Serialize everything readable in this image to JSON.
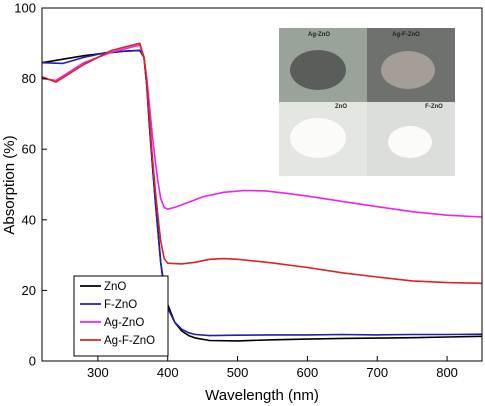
{
  "chart_data": {
    "type": "line",
    "title": "",
    "xlabel": "Wavelength (nm)",
    "ylabel": "Absorption (%)",
    "xlim": [
      220,
      850
    ],
    "ylim": [
      0,
      100
    ],
    "x_ticks": [
      300,
      400,
      500,
      600,
      700,
      800
    ],
    "y_ticks": [
      0,
      20,
      40,
      60,
      80,
      100
    ],
    "grid": false,
    "legend_position": "bottom-left",
    "series": [
      {
        "name": "ZnO",
        "color": "#000000",
        "points": [
          [
            220,
            84.5
          ],
          [
            250,
            85.5
          ],
          [
            280,
            86.5
          ],
          [
            310,
            87.2
          ],
          [
            340,
            87.8
          ],
          [
            360,
            88
          ],
          [
            366,
            86
          ],
          [
            370,
            78
          ],
          [
            374,
            66
          ],
          [
            378,
            56
          ],
          [
            382,
            46
          ],
          [
            386,
            37
          ],
          [
            390,
            28
          ],
          [
            395,
            21
          ],
          [
            400,
            16
          ],
          [
            410,
            11
          ],
          [
            420,
            8.5
          ],
          [
            430,
            7.2
          ],
          [
            440,
            6.5
          ],
          [
            460,
            5.8
          ],
          [
            500,
            5.7
          ],
          [
            550,
            6
          ],
          [
            600,
            6.2
          ],
          [
            650,
            6.4
          ],
          [
            700,
            6.5
          ],
          [
            750,
            6.6
          ],
          [
            800,
            6.8
          ],
          [
            850,
            7
          ]
        ]
      },
      {
        "name": "F-ZnO",
        "color": "#1f1fb4",
        "points": [
          [
            220,
            84.5
          ],
          [
            250,
            84.3
          ],
          [
            280,
            86
          ],
          [
            310,
            87.3
          ],
          [
            340,
            87.8
          ],
          [
            360,
            88
          ],
          [
            366,
            86
          ],
          [
            370,
            78
          ],
          [
            374,
            66
          ],
          [
            378,
            56
          ],
          [
            382,
            46
          ],
          [
            386,
            37
          ],
          [
            390,
            28
          ],
          [
            395,
            20
          ],
          [
            400,
            15
          ],
          [
            410,
            11
          ],
          [
            420,
            9
          ],
          [
            430,
            8
          ],
          [
            440,
            7.5
          ],
          [
            460,
            7.2
          ],
          [
            500,
            7.3
          ],
          [
            550,
            7.4
          ],
          [
            600,
            7.4
          ],
          [
            650,
            7.5
          ],
          [
            700,
            7.4
          ],
          [
            750,
            7.5
          ],
          [
            800,
            7.5
          ],
          [
            850,
            7.6
          ]
        ]
      },
      {
        "name": "Ag-ZnO",
        "color": "#ee22ee",
        "points": [
          [
            220,
            80
          ],
          [
            240,
            79.5
          ],
          [
            260,
            82
          ],
          [
            280,
            84.5
          ],
          [
            300,
            86
          ],
          [
            320,
            87.5
          ],
          [
            340,
            88.5
          ],
          [
            360,
            89.5
          ],
          [
            366,
            86
          ],
          [
            370,
            80
          ],
          [
            374,
            72
          ],
          [
            378,
            64
          ],
          [
            382,
            57
          ],
          [
            386,
            51
          ],
          [
            390,
            46
          ],
          [
            395,
            43.5
          ],
          [
            400,
            43
          ],
          [
            410,
            43.5
          ],
          [
            430,
            45
          ],
          [
            450,
            46.5
          ],
          [
            480,
            47.8
          ],
          [
            510,
            48.3
          ],
          [
            540,
            48.2
          ],
          [
            570,
            47.5
          ],
          [
            600,
            46.7
          ],
          [
            650,
            45.2
          ],
          [
            700,
            43.7
          ],
          [
            750,
            42.3
          ],
          [
            800,
            41.3
          ],
          [
            850,
            40.8
          ]
        ]
      },
      {
        "name": "Ag-F-ZnO",
        "color": "#dd2222",
        "points": [
          [
            220,
            80.5
          ],
          [
            240,
            79
          ],
          [
            260,
            81.5
          ],
          [
            280,
            84
          ],
          [
            300,
            86
          ],
          [
            320,
            88
          ],
          [
            340,
            89
          ],
          [
            360,
            90
          ],
          [
            366,
            86
          ],
          [
            370,
            79
          ],
          [
            374,
            68
          ],
          [
            378,
            58
          ],
          [
            382,
            49
          ],
          [
            386,
            41
          ],
          [
            390,
            34
          ],
          [
            395,
            29
          ],
          [
            400,
            27.7
          ],
          [
            420,
            27.5
          ],
          [
            440,
            28
          ],
          [
            460,
            28.8
          ],
          [
            480,
            29
          ],
          [
            500,
            28.8
          ],
          [
            550,
            27.8
          ],
          [
            600,
            26.5
          ],
          [
            650,
            25
          ],
          [
            700,
            23.8
          ],
          [
            750,
            22.7
          ],
          [
            800,
            22.2
          ],
          [
            850,
            22
          ]
        ]
      }
    ]
  },
  "inset_photos": {
    "labels": [
      "Ag-ZnO",
      "Ag-F-ZnO",
      "ZnO",
      "F-ZnO"
    ],
    "colors": {
      "ag_zno_bg": "#9aa39a",
      "ag_zno_powder": "#5a5d5a",
      "ag_f_zno_bg": "#6e716d",
      "ag_f_zno_powder": "#a49e96",
      "white_bg": "#e4e6e2",
      "white_powder": "#fbfbf9"
    }
  }
}
